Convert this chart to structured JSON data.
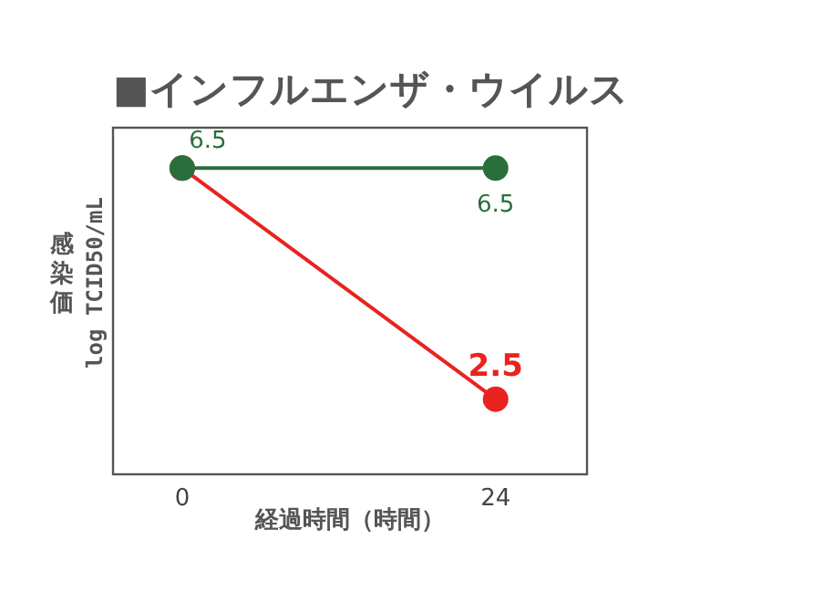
{
  "chart_data": {
    "type": "line",
    "title": "■インフルエンザ・ウイルス",
    "xlabel": "経過時間（時間）",
    "ylabel": "感染価\nlog TCID50/mL",
    "x": [
      0,
      24
    ],
    "xlim": [
      -5.3,
      31
    ],
    "xticks": [
      0,
      24
    ],
    "ylim": [
      1.2,
      7.2
    ],
    "tick_labels": "x",
    "marker": "circle",
    "series": [
      {
        "color": "#e8231f",
        "values": [
          6.5,
          2.5
        ],
        "value_labels": [
          null,
          "2.5"
        ]
      },
      {
        "color": "#2a6e3c",
        "values": [
          6.5,
          6.5
        ],
        "value_labels": [
          "6.5",
          "6.5"
        ]
      }
    ]
  }
}
